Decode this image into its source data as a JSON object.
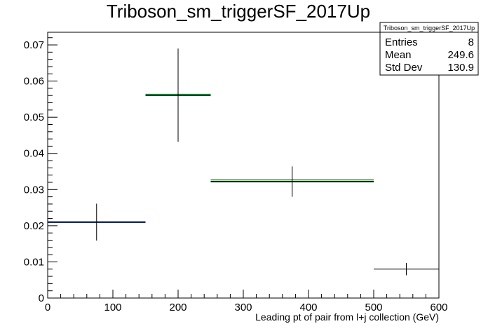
{
  "chart_data": {
    "type": "histogram",
    "title": "Triboson_sm_triggerSF_2017Up",
    "xlabel": "Leading pt of pair from l+j collection (GeV)",
    "ylabel": "",
    "xlim": [
      0,
      600
    ],
    "ylim": [
      0,
      0.0735
    ],
    "x_ticks": [
      0,
      100,
      200,
      300,
      400,
      500,
      600
    ],
    "x_tick_labels": [
      "0",
      "100",
      "200",
      "300",
      "400",
      "500",
      "600"
    ],
    "y_ticks": [
      0,
      0.01,
      0.02,
      0.03,
      0.04,
      0.05,
      0.06,
      0.07
    ],
    "y_tick_labels": [
      "0",
      "0.01",
      "0.02",
      "0.03",
      "0.04",
      "0.05",
      "0.06",
      "0.07"
    ],
    "grid": false,
    "bins": [
      {
        "xlow": 0,
        "xhigh": 150,
        "center": 75,
        "value": 0.021,
        "err": 0.0051,
        "green": 0.021,
        "blue": 0.021
      },
      {
        "xlow": 150,
        "xhigh": 250,
        "center": 200,
        "value": 0.0561,
        "err": 0.0129,
        "green": 0.0563,
        "blue": 0.0561
      },
      {
        "xlow": 250,
        "xhigh": 500,
        "center": 375,
        "value": 0.0322,
        "err": 0.0042,
        "green": 0.0327,
        "blue": 0.0322
      },
      {
        "xlow": 500,
        "xhigh": 600,
        "center": 550,
        "value": 0.008,
        "err": 0.0017,
        "green": null,
        "blue": null
      }
    ],
    "colors": {
      "black": "#000000",
      "green": "#33cc33",
      "blue": "#00008b"
    }
  },
  "stats": {
    "title": "Triboson_sm_triggerSF_2017Up",
    "rows": [
      {
        "label": "Entries",
        "value": "8"
      },
      {
        "label": "Mean",
        "value": "249.6"
      },
      {
        "label": "Std Dev",
        "value": "130.9"
      }
    ]
  }
}
